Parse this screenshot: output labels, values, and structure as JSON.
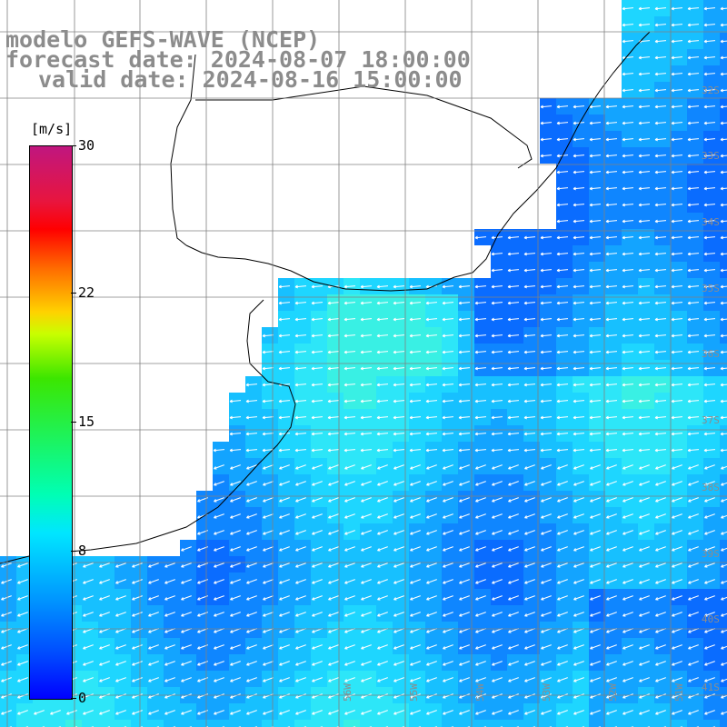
{
  "titles": {
    "model": "modelo GEFS-WAVE (NCEP)",
    "forecast": "forecast date: 2024-08-07 18:00:00",
    "valid": "valid date: 2024-08-16 15:00:00"
  },
  "legend": {
    "unit": "[m/s]",
    "ticks": [
      "30",
      "22",
      "15",
      "8",
      "0"
    ],
    "tick_values": [
      30,
      22,
      15,
      8,
      0
    ],
    "min": 0,
    "max": 30
  },
  "map": {
    "lat_labels": [
      "32S",
      "33S",
      "34S",
      "35S",
      "36S",
      "37S",
      "38S",
      "39S",
      "40S",
      "41S"
    ],
    "lon_labels": [
      "56W",
      "55W",
      "54W",
      "53W",
      "52W",
      "51W"
    ],
    "colors": {
      "land": "#ffffff",
      "coast": "#000000",
      "grid": "#808080",
      "arrow": "#ffffff",
      "label": "#8c8c8c"
    }
  }
}
